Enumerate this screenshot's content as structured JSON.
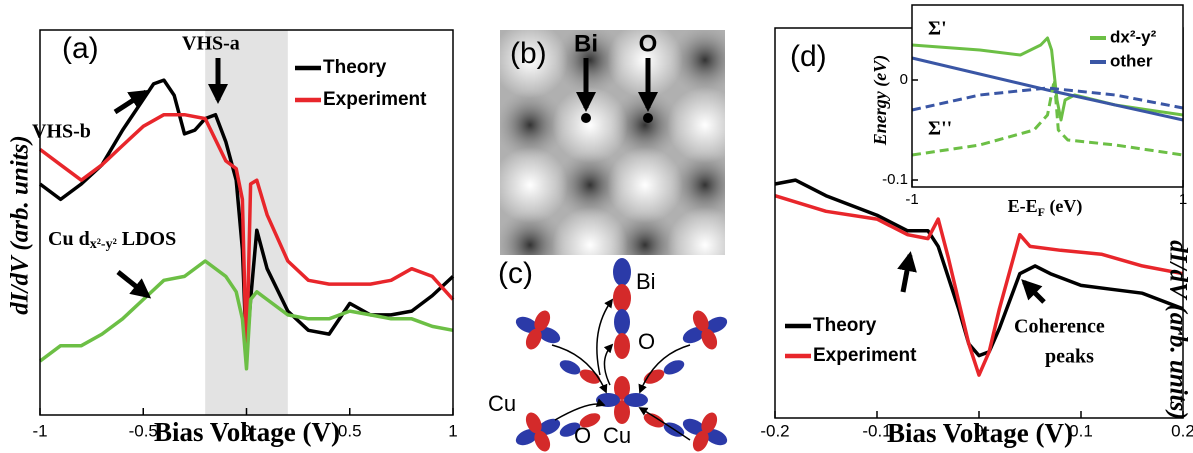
{
  "chart_data": [
    {
      "type": "line",
      "panel": "(a)",
      "xlabel": "Bias Voltage (V)",
      "ylabel": "dI/dV (arb. units)",
      "xlim": [
        -1,
        1
      ],
      "xticks": [
        -1,
        -0.5,
        0,
        0.5,
        1
      ],
      "ylim": [
        0,
        1
      ],
      "shaded_region": [
        -0.2,
        0.2
      ],
      "annotations": [
        "VHS-a",
        "VHS-b"
      ],
      "ldos_label": [
        "Cu d",
        "x²-y²",
        " LDOS"
      ],
      "series": [
        {
          "name": "Theory",
          "color": "#000000",
          "x": [
            -1,
            -0.9,
            -0.8,
            -0.7,
            -0.6,
            -0.5,
            -0.45,
            -0.4,
            -0.35,
            -0.3,
            -0.25,
            -0.2,
            -0.15,
            -0.1,
            -0.05,
            -0.02,
            0,
            0.02,
            0.05,
            0.1,
            0.2,
            0.3,
            0.4,
            0.5,
            0.6,
            0.7,
            0.8,
            0.9,
            1
          ],
          "values": [
            0.6,
            0.56,
            0.6,
            0.65,
            0.74,
            0.82,
            0.86,
            0.87,
            0.83,
            0.73,
            0.74,
            0.77,
            0.78,
            0.71,
            0.61,
            0.43,
            0.16,
            0.3,
            0.48,
            0.38,
            0.27,
            0.22,
            0.21,
            0.29,
            0.26,
            0.26,
            0.27,
            0.31,
            0.36
          ]
        },
        {
          "name": "Experiment",
          "color": "#e8262b",
          "x": [
            -1,
            -0.9,
            -0.8,
            -0.7,
            -0.6,
            -0.5,
            -0.4,
            -0.3,
            -0.2,
            -0.1,
            -0.05,
            -0.02,
            0,
            0.02,
            0.05,
            0.1,
            0.2,
            0.3,
            0.4,
            0.5,
            0.6,
            0.7,
            0.8,
            0.9,
            1
          ],
          "values": [
            0.69,
            0.65,
            0.61,
            0.65,
            0.7,
            0.75,
            0.78,
            0.78,
            0.77,
            0.66,
            0.64,
            0.56,
            0.14,
            0.6,
            0.61,
            0.52,
            0.4,
            0.35,
            0.34,
            0.34,
            0.34,
            0.35,
            0.38,
            0.36,
            0.3
          ]
        },
        {
          "color": "#6cbf45",
          "x": [
            -1,
            -0.9,
            -0.8,
            -0.7,
            -0.6,
            -0.5,
            -0.4,
            -0.3,
            -0.2,
            -0.1,
            -0.05,
            -0.02,
            0,
            0.02,
            0.05,
            0.1,
            0.2,
            0.3,
            0.4,
            0.5,
            0.6,
            0.7,
            0.8,
            0.9,
            1
          ],
          "values": [
            0.14,
            0.18,
            0.18,
            0.21,
            0.25,
            0.3,
            0.35,
            0.36,
            0.4,
            0.36,
            0.32,
            0.25,
            0.12,
            0.3,
            0.32,
            0.3,
            0.26,
            0.25,
            0.25,
            0.27,
            0.26,
            0.25,
            0.25,
            0.23,
            0.22
          ]
        }
      ]
    },
    {
      "type": "line",
      "panel": "(d)",
      "xlabel": "Bias Voltage (V)",
      "ylabel": "dI/dV (arb. units)",
      "xlim": [
        -0.2,
        0.2
      ],
      "xticks": [
        -0.2,
        -0.1,
        0,
        0.1,
        0.2
      ],
      "ylim": [
        0,
        1
      ],
      "annotations": [
        "Coherence",
        "peaks"
      ],
      "series": [
        {
          "name": "Theory",
          "color": "#000000",
          "x": [
            -0.2,
            -0.18,
            -0.15,
            -0.1,
            -0.07,
            -0.05,
            -0.04,
            -0.02,
            -0.01,
            0,
            0.01,
            0.02,
            0.04,
            0.055,
            0.07,
            0.1,
            0.13,
            0.16,
            0.2
          ],
          "values": [
            0.6,
            0.61,
            0.57,
            0.52,
            0.48,
            0.48,
            0.44,
            0.28,
            0.19,
            0.16,
            0.17,
            0.23,
            0.37,
            0.39,
            0.37,
            0.34,
            0.33,
            0.32,
            0.28
          ]
        },
        {
          "name": "Experiment",
          "color": "#e8262b",
          "x": [
            -0.2,
            -0.15,
            -0.1,
            -0.07,
            -0.05,
            -0.04,
            -0.03,
            -0.01,
            0,
            0.01,
            0.02,
            0.04,
            0.05,
            0.08,
            0.12,
            0.16,
            0.2
          ],
          "values": [
            0.57,
            0.53,
            0.51,
            0.47,
            0.46,
            0.51,
            0.41,
            0.19,
            0.11,
            0.17,
            0.28,
            0.47,
            0.44,
            0.43,
            0.42,
            0.39,
            0.37
          ]
        }
      ]
    },
    {
      "type": "line",
      "ylabel": "Energy (eV)",
      "xlabel_parts": [
        "E-E",
        "F",
        " (eV)"
      ],
      "xlim": [
        -1,
        1
      ],
      "xticks": [
        -1,
        1
      ],
      "ylim": [
        -0.107,
        0.075
      ],
      "yticks": [
        0,
        -0.1
      ],
      "annotations": [
        "Σ'",
        "Σ''"
      ],
      "series": [
        {
          "name": "dx²-y²",
          "color": "#6cbf45",
          "x": [
            -1,
            -0.5,
            -0.2,
            -0.05,
            0,
            0.03,
            0.07,
            0.1,
            0.13,
            0.2,
            0.5,
            1
          ],
          "values": [
            0.035,
            0.03,
            0.025,
            0.035,
            0.042,
            0.03,
            -0.02,
            -0.04,
            -0.02,
            -0.015,
            -0.025,
            -0.035
          ]
        },
        {
          "name": "other",
          "color": "#3a56a5",
          "x": [
            -1,
            0,
            1
          ],
          "values": [
            0.022,
            -0.01,
            -0.04
          ]
        },
        {
          "color": "#6cbf45",
          "dash": true,
          "x": [
            -1,
            -0.5,
            -0.1,
            0,
            0.05,
            0.08,
            0.15,
            0.5,
            1
          ],
          "values": [
            -0.075,
            -0.065,
            -0.05,
            -0.035,
            0,
            -0.05,
            -0.06,
            -0.065,
            -0.075
          ]
        },
        {
          "color": "#3a56a5",
          "dash": true,
          "x": [
            -1,
            -0.5,
            0,
            0.5,
            1
          ],
          "values": [
            -0.03,
            -0.015,
            -0.008,
            -0.015,
            -0.028
          ]
        }
      ]
    }
  ],
  "panel_b": {
    "label": "(b)",
    "atoms": [
      "Bi",
      "O"
    ]
  },
  "panel_c": {
    "label": "(c)",
    "atoms": [
      "Bi",
      "O",
      "Cu",
      "O",
      "Cu"
    ]
  }
}
